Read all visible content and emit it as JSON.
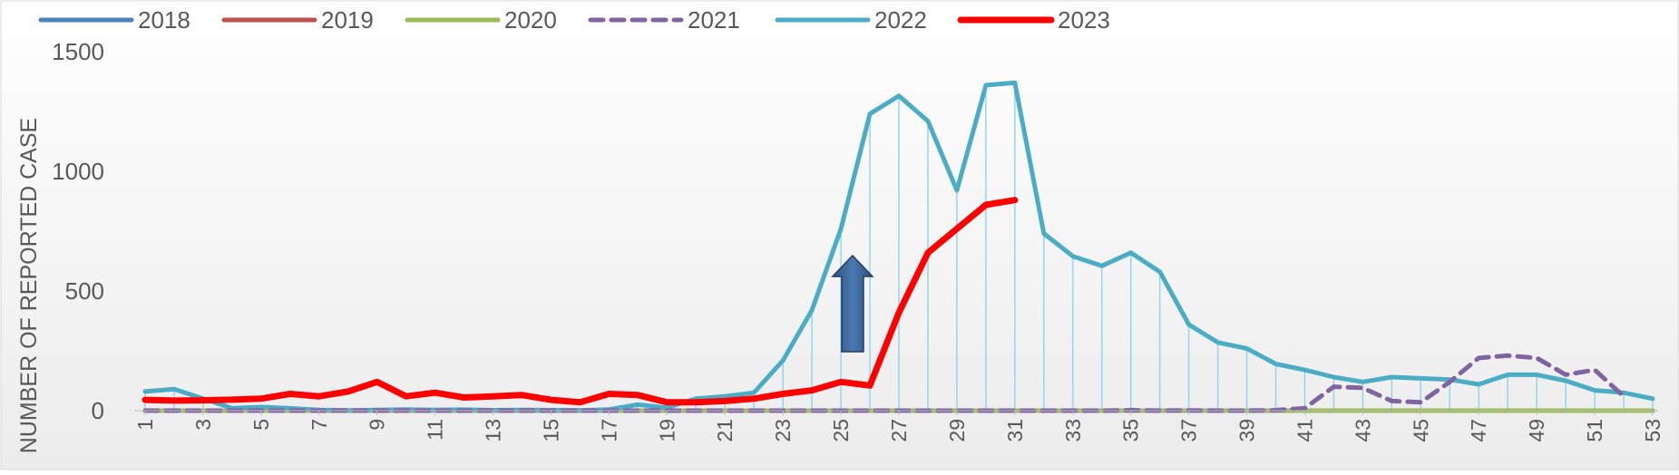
{
  "chart_data": {
    "type": "line",
    "title": "",
    "xlabel": "",
    "ylabel": "NUMBER OF REPORTED CASE",
    "xlim": [
      1,
      53
    ],
    "ylim": [
      0,
      1500
    ],
    "y_ticks": [
      "0",
      "500",
      "1000",
      "1500"
    ],
    "x_ticks": [
      "1",
      "3",
      "5",
      "7",
      "9",
      "11",
      "13",
      "15",
      "17",
      "19",
      "21",
      "23",
      "25",
      "27",
      "29",
      "31",
      "33",
      "35",
      "37",
      "39",
      "41",
      "43",
      "45",
      "47",
      "49",
      "51",
      "53"
    ],
    "grid": false,
    "drop_lines_series": "2022",
    "legend_position": "top",
    "annotation": "up-arrow",
    "series": [
      {
        "name": "2018",
        "color": "#4F81BD",
        "dash": false,
        "x": [
          1,
          53
        ],
        "values": [
          0,
          0
        ]
      },
      {
        "name": "2019",
        "color": "#C0504D",
        "dash": false,
        "x": [
          1,
          51,
          52,
          53
        ],
        "values": [
          0,
          0,
          0,
          0
        ]
      },
      {
        "name": "2020",
        "color": "#9BBB59",
        "dash": false,
        "x": [
          1,
          53
        ],
        "values": [
          0,
          0
        ]
      },
      {
        "name": "2021",
        "color": "#8064A2",
        "dash": true,
        "x": [
          1,
          2,
          3,
          4,
          5,
          6,
          7,
          8,
          9,
          10,
          11,
          12,
          13,
          14,
          15,
          16,
          17,
          18,
          19,
          20,
          21,
          22,
          23,
          24,
          25,
          26,
          27,
          28,
          29,
          30,
          31,
          32,
          33,
          34,
          35,
          36,
          37,
          38,
          39,
          40,
          41,
          42,
          43,
          44,
          45,
          46,
          47,
          48,
          49,
          50,
          51,
          52
        ],
        "values": [
          0,
          0,
          0,
          0,
          0,
          0,
          0,
          0,
          0,
          0,
          0,
          0,
          0,
          0,
          0,
          0,
          0,
          0,
          0,
          0,
          0,
          0,
          0,
          0,
          0,
          0,
          0,
          0,
          0,
          0,
          0,
          0,
          0,
          0,
          2,
          0,
          1,
          0,
          0,
          2,
          10,
          100,
          95,
          40,
          35,
          120,
          220,
          230,
          220,
          150,
          170,
          60
        ]
      },
      {
        "name": "2022",
        "color": "#4BACC6",
        "dash": false,
        "x": [
          1,
          2,
          3,
          4,
          5,
          6,
          7,
          8,
          9,
          10,
          11,
          12,
          13,
          14,
          15,
          16,
          17,
          18,
          19,
          20,
          21,
          22,
          23,
          24,
          25,
          26,
          27,
          28,
          29,
          30,
          31,
          32,
          33,
          34,
          35,
          36,
          37,
          38,
          39,
          40,
          41,
          42,
          43,
          44,
          45,
          46,
          47,
          48,
          49,
          50,
          51,
          52,
          53
        ],
        "values": [
          80,
          90,
          50,
          10,
          15,
          10,
          3,
          1,
          3,
          5,
          3,
          4,
          2,
          3,
          2,
          1,
          5,
          25,
          12,
          50,
          60,
          75,
          210,
          420,
          760,
          1240,
          1315,
          1210,
          920,
          1360,
          1370,
          740,
          645,
          605,
          660,
          580,
          360,
          285,
          260,
          195,
          170,
          140,
          120,
          140,
          135,
          130,
          110,
          150,
          150,
          125,
          85,
          75,
          50
        ]
      },
      {
        "name": "2023",
        "color": "#FF0000",
        "dash": false,
        "x": [
          1,
          2,
          3,
          4,
          5,
          6,
          7,
          8,
          9,
          10,
          11,
          12,
          13,
          14,
          15,
          16,
          17,
          18,
          19,
          20,
          21,
          22,
          23,
          24,
          25,
          26,
          27,
          28,
          29,
          30,
          31
        ],
        "values": [
          45,
          42,
          43,
          46,
          50,
          70,
          60,
          80,
          120,
          60,
          75,
          55,
          60,
          65,
          45,
          35,
          70,
          65,
          35,
          35,
          40,
          50,
          70,
          85,
          120,
          105,
          410,
          660,
          760,
          860,
          880
        ]
      }
    ]
  }
}
